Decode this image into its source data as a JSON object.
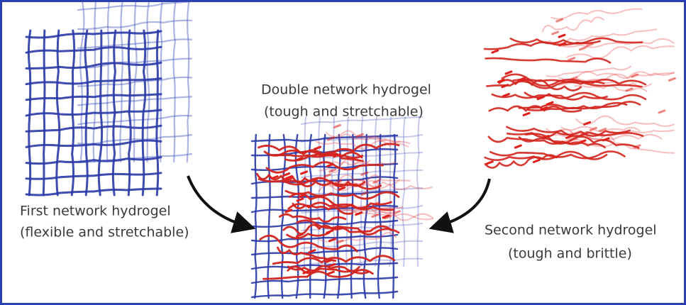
{
  "nodes": [
    {
      "lines": [
        "First network hydrogel",
        "(flexible and stretchable)"
      ]
    },
    {
      "lines": [
        "Double network hydrogel",
        "(tough and stretchable)"
      ]
    },
    {
      "lines": [
        "Second network hydrogel",
        "(tough and brittle)"
      ]
    }
  ]
}
